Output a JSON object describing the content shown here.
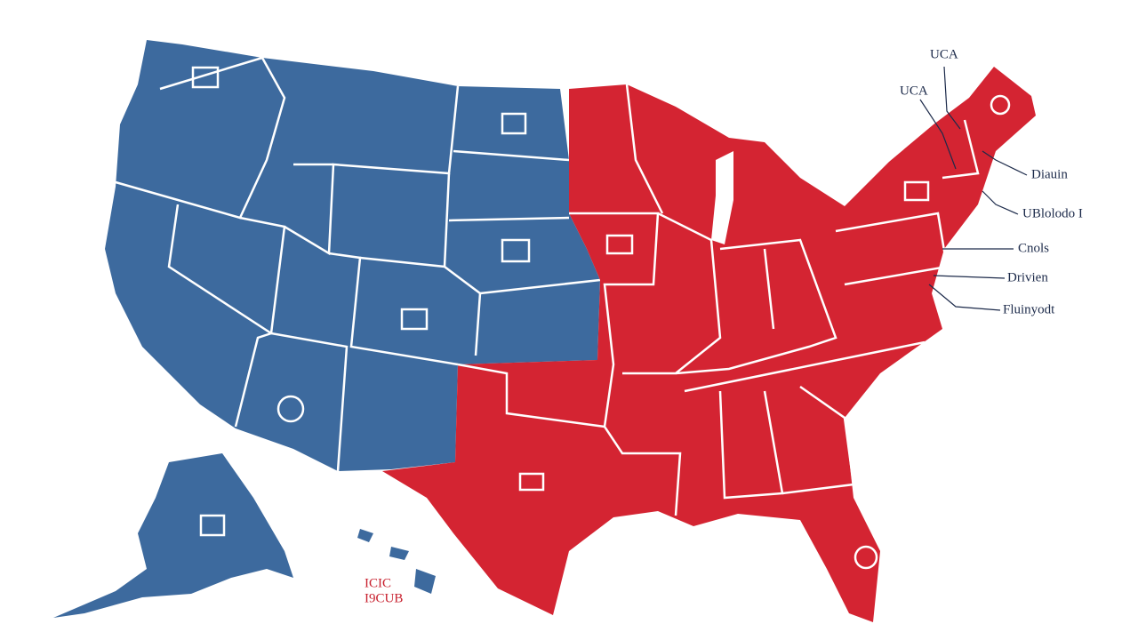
{
  "callouts": [
    "UCA",
    "UCA",
    "Diauin",
    "UBlolodo I",
    "Cnols",
    "Drivien",
    "Fluinyodt"
  ],
  "inset_label": [
    "ICIC",
    "I9CUB"
  ]
}
